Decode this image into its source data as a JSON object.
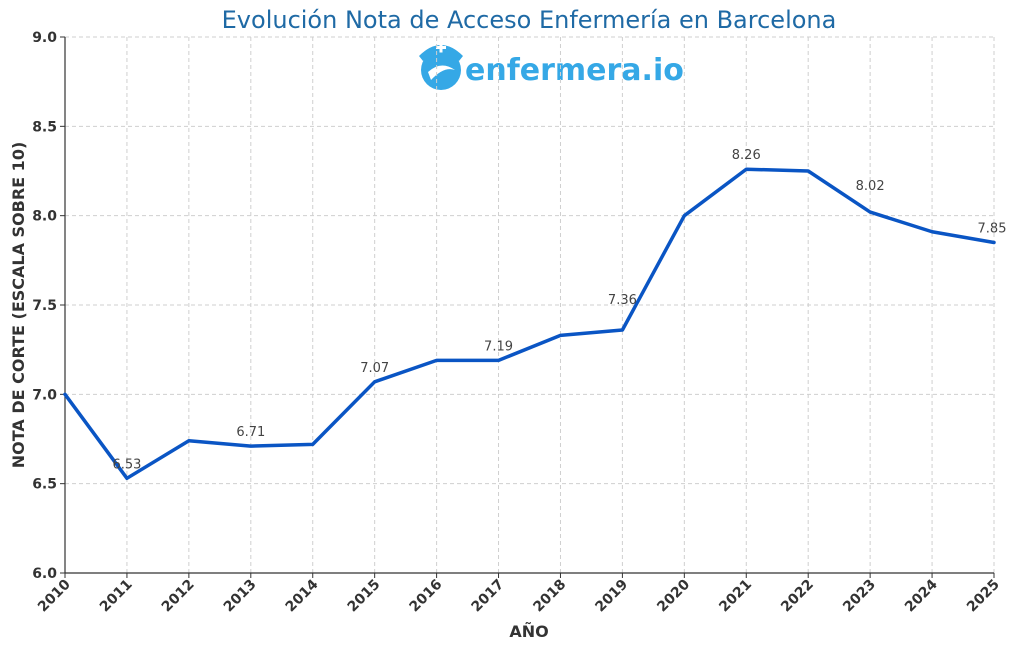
{
  "chart_data": {
    "type": "line",
    "title": "Evolución Nota de Acceso Enfermería en Barcelona",
    "xlabel": "AÑO",
    "ylabel": "NOTA DE CORTE (ESCALA SOBRE 10)",
    "x": [
      2010,
      2011,
      2012,
      2013,
      2014,
      2015,
      2016,
      2017,
      2018,
      2019,
      2020,
      2021,
      2022,
      2023,
      2024,
      2025
    ],
    "series": [
      {
        "values": [
          7.0,
          6.53,
          6.74,
          6.71,
          6.72,
          7.07,
          7.19,
          7.19,
          7.33,
          7.36,
          8.0,
          8.26,
          8.25,
          8.02,
          7.91,
          7.85
        ]
      }
    ],
    "data_labels": [
      {
        "x": 2011,
        "text": "6.53"
      },
      {
        "x": 2013,
        "text": "6.71"
      },
      {
        "x": 2015,
        "text": "7.07"
      },
      {
        "x": 2017,
        "text": "7.19"
      },
      {
        "x": 2019,
        "text": "7.36"
      },
      {
        "x": 2021,
        "text": "8.26"
      },
      {
        "x": 2023,
        "text": "8.02"
      },
      {
        "x": 2025,
        "text": "7.85"
      }
    ],
    "ylim": [
      6.0,
      9.0
    ],
    "yticks": [
      "6.0",
      "6.5",
      "7.0",
      "7.5",
      "8.0",
      "8.5",
      "9.0"
    ],
    "xlim": [
      2010,
      2025
    ],
    "grid": true,
    "line_color": "#0a55c4"
  },
  "logo": {
    "text": "enfermera.io",
    "icon": "nurse-cap-icon",
    "color": "#35a8e6"
  }
}
